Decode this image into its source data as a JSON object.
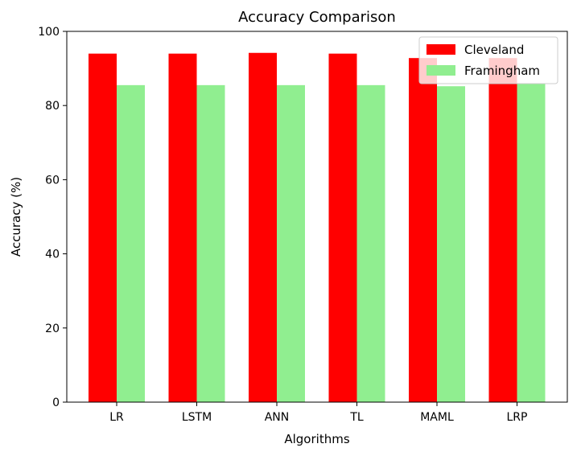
{
  "chart_data": {
    "type": "bar",
    "title": "Accuracy Comparison",
    "xlabel": "Algorithms",
    "ylabel": "Accuracy (%)",
    "categories": [
      "LR",
      "LSTM",
      "ANN",
      "TL",
      "MAML",
      "LRP"
    ],
    "ylim": [
      0,
      100
    ],
    "yticks": [
      "0",
      "20",
      "40",
      "60",
      "80",
      "100"
    ],
    "series": [
      {
        "name": "Cleveland",
        "color": "#ff0000",
        "values": [
          94.0,
          94.0,
          94.2,
          94.0,
          92.8,
          92.8
        ]
      },
      {
        "name": "Framingham",
        "color": "#90ee90",
        "values": [
          85.5,
          85.5,
          85.5,
          85.5,
          85.2,
          85.9
        ]
      }
    ],
    "grid": false,
    "legend": "top-right"
  }
}
